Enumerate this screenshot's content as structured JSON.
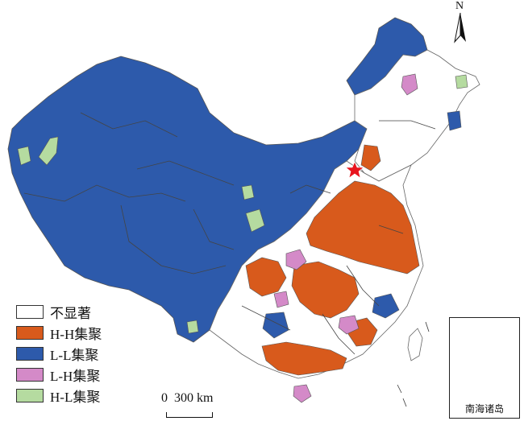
{
  "map": {
    "colors": {
      "hh": "#d85a1c",
      "ll": "#2d5aab",
      "lh": "#d48ac8",
      "hl": "#b5dba0",
      "ns": "#ffffff",
      "border": "#555555",
      "capital": "#e8141e"
    }
  },
  "legend": {
    "items": [
      {
        "label": "不显著",
        "color": "#ffffff"
      },
      {
        "label": "H-H集聚",
        "color": "#d85a1c"
      },
      {
        "label": "L-L集聚",
        "color": "#2d5aab"
      },
      {
        "label": "L-H集聚",
        "color": "#d48ac8"
      },
      {
        "label": "H-L集聚",
        "color": "#b5dba0"
      }
    ]
  },
  "scalebar": {
    "label": "0  300 km"
  },
  "north_arrow": {
    "letter": "N"
  },
  "inset": {
    "label": "南海诸岛"
  }
}
